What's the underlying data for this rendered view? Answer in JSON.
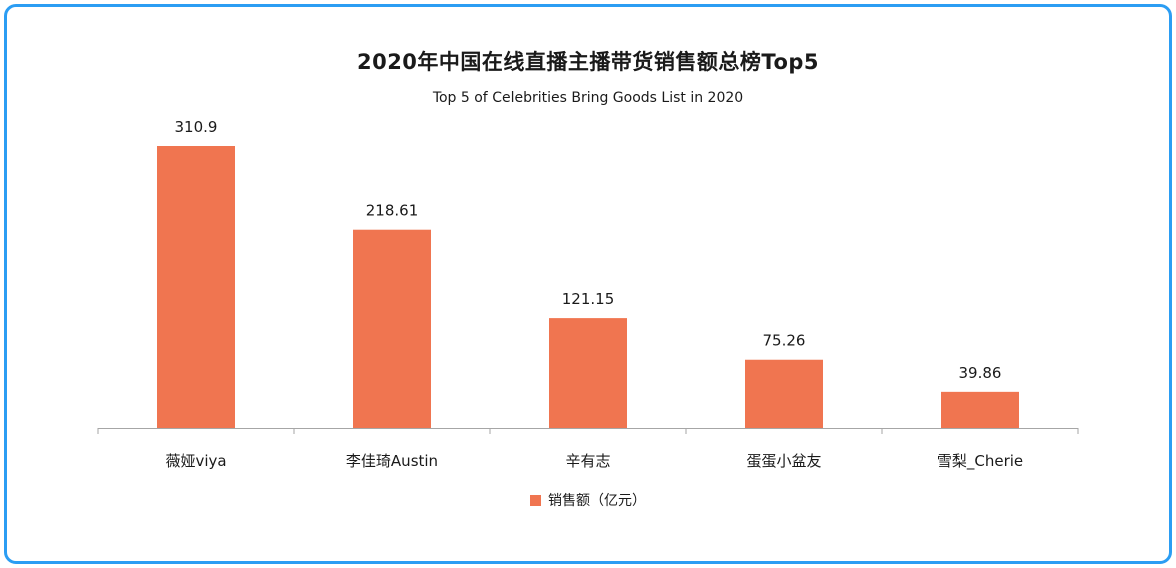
{
  "chart_data": {
    "type": "bar",
    "title": "2020年中国在线直播主播带货销售额总榜Top5",
    "subtitle": "Top 5 of Celebrities Bring Goods List in 2020",
    "categories": [
      "薇娅viya",
      "李佳琦Austin",
      "辛有志",
      "蛋蛋小盆友",
      "雪梨_Cherie"
    ],
    "series": [
      {
        "name": "销售额（亿元）",
        "values": [
          310.9,
          218.61,
          121.15,
          75.26,
          39.86
        ],
        "labels": [
          "310.9",
          "218.61",
          "121.15",
          "75.26",
          "39.86"
        ],
        "color": "#f07550"
      }
    ],
    "xlabel": "",
    "ylabel": "",
    "ylim": [
      0,
      310.9
    ],
    "grid": false,
    "legend_position": "bottom-center"
  }
}
